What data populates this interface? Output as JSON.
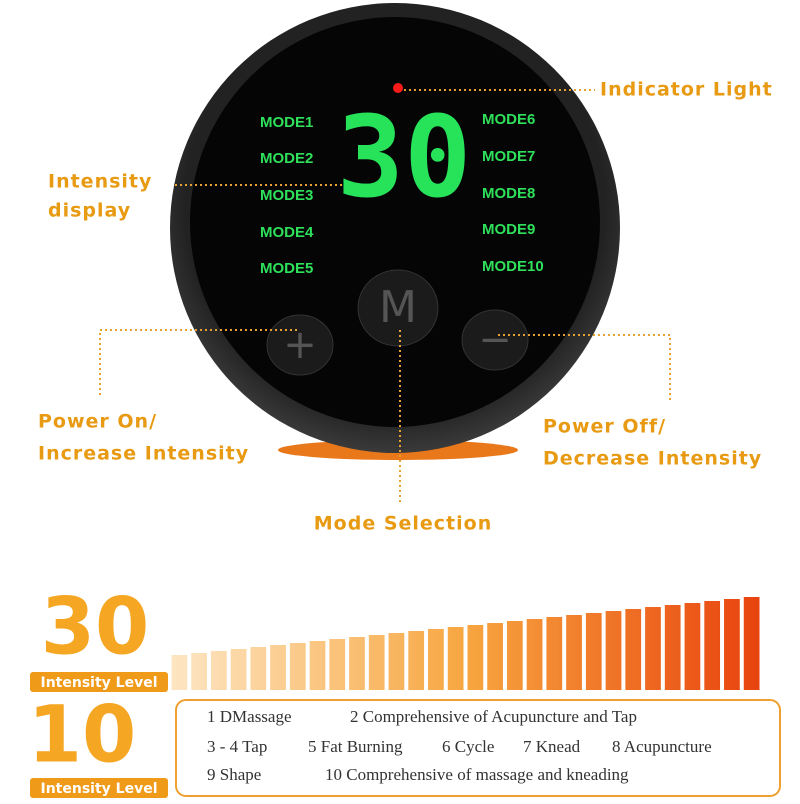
{
  "device": {
    "indicator_light_label": "Indicator Light",
    "display_value": "30",
    "modes_left": [
      "MODE1",
      "MODE2",
      "MODE3",
      "MODE4",
      "MODE5"
    ],
    "modes_right": [
      "MODE6",
      "MODE7",
      "MODE8",
      "MODE9",
      "MODE10"
    ],
    "mode_button": "M",
    "plus_button": "+",
    "minus_button": "−"
  },
  "annotations": {
    "intensity_display": [
      "Intensity",
      "display"
    ],
    "power_on": [
      "Power On/",
      "Increase Intensity"
    ],
    "power_off": [
      "Power Off/",
      "Decrease Intensity"
    ],
    "mode_selection": "Mode Selection"
  },
  "intensity": {
    "max": 30,
    "max_label": "Intensity Level",
    "min": 10,
    "min_label": "Intensity Level"
  },
  "mode_list": {
    "rows": [
      [
        "1 DMassage",
        "2 Comprehensive of Acupuncture and Tap"
      ],
      [
        "3 - 4 Tap",
        "5 Fat Burning",
        "6 Cycle",
        "7 Knead",
        "8 Acupuncture"
      ],
      [
        "9 Shape",
        "10 Comprehensive of massage and kneading"
      ]
    ]
  }
}
